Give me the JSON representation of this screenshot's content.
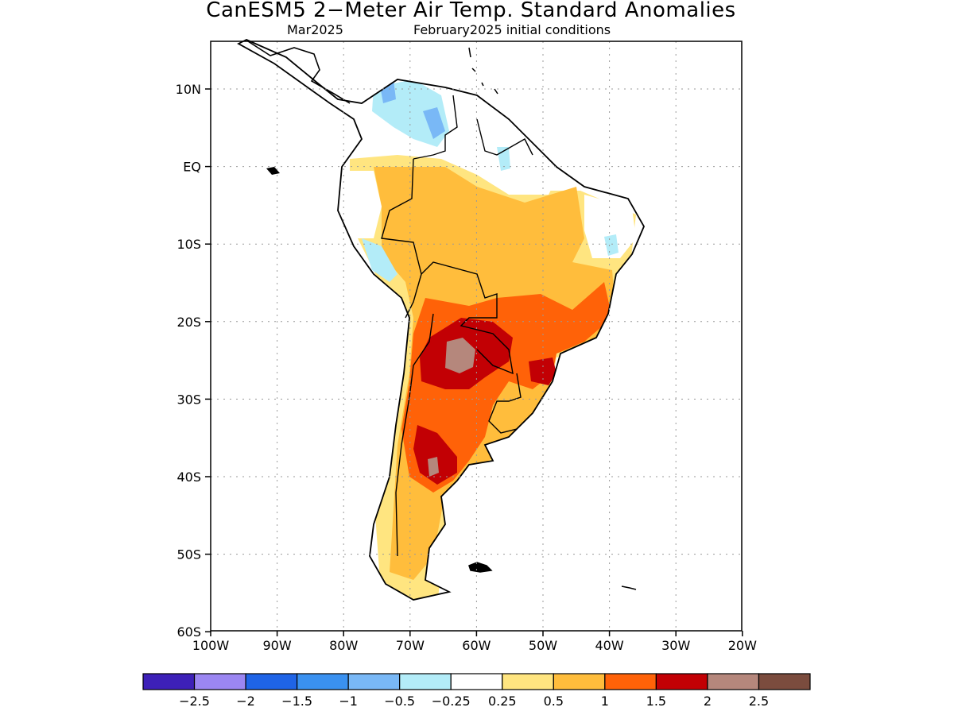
{
  "header": {
    "title": "CanESM5 2−Meter Air Temp. Standard Anomalies",
    "subtitle_left": "Mar2025",
    "subtitle_right": "February2025 initial conditions"
  },
  "axes": {
    "lat_labels": [
      "10N",
      "EQ",
      "10S",
      "20S",
      "30S",
      "40S",
      "50S",
      "60S"
    ],
    "lon_labels": [
      "100W",
      "90W",
      "80W",
      "70W",
      "60W",
      "50W",
      "40W",
      "30W",
      "20W"
    ]
  },
  "colorbar": {
    "labels": [
      "−2.5",
      "−2",
      "−1.5",
      "−1",
      "−0.5",
      "−0.25",
      "0.25",
      "0.5",
      "1",
      "1.5",
      "2",
      "2.5"
    ],
    "colors": [
      "#3d20b8",
      "#9b86f2",
      "#1f64e6",
      "#3a91f0",
      "#79b8f6",
      "#b3ecf8",
      "#ffffff",
      "#ffe580",
      "#ffbd3c",
      "#ff6208",
      "#c20004",
      "#b5877c",
      "#7b4c3e"
    ]
  },
  "map_colors": {
    "light_blue": "#b3ecf8",
    "mid_blue": "#79b8f6",
    "light_yellow": "#ffe580",
    "orange_light": "#ffbd3c",
    "orange": "#ff6208",
    "red": "#c20004",
    "brown_grey": "#b5877c",
    "coast": "#000000",
    "grid": "#9a9a9a"
  }
}
